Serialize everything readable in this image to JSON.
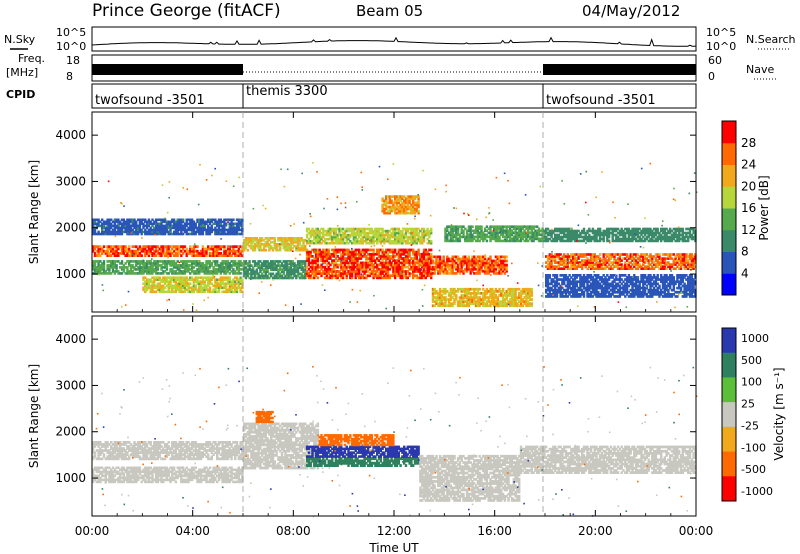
{
  "header": {
    "title": "Prince George (fitACF)",
    "beam": "Beam 05",
    "date": "04/May/2012"
  },
  "noise": {
    "left_label": "N.Sky",
    "right_label": "N.Search",
    "tick_top": "10^5",
    "tick_bottom": "10^0"
  },
  "freq": {
    "label_line1": "Freq.",
    "label_line2": "[MHz]",
    "tick_top": "18",
    "tick_bottom": "8",
    "nave_label": "Nave",
    "nave_tick_top": "60",
    "nave_tick_bottom": "0"
  },
  "cpid": {
    "label": "CPID",
    "segments": [
      {
        "name": "twofsound -3501",
        "start_hour": 0,
        "end_hour": 6
      },
      {
        "name": "themis 3300",
        "start_hour": 6,
        "end_hour": 18
      },
      {
        "name": "twofsound -3501",
        "start_hour": 18,
        "end_hour": 24
      }
    ]
  },
  "xaxis": {
    "label": "Time UT",
    "ticks": [
      "00:00",
      "04:00",
      "08:00",
      "12:00",
      "16:00",
      "20:00",
      "00:00"
    ]
  },
  "chart_data": [
    {
      "type": "heatmap",
      "name": "power-panel",
      "ylabel": "Slant Range [km]",
      "xlabel": "",
      "xlim": [
        0,
        24
      ],
      "ylim": [
        180,
        4500
      ],
      "yticks": [
        "1000",
        "2000",
        "3000",
        "4000"
      ],
      "colorbar_label": "Power [dB]",
      "colorbar_ticks": [
        "4",
        "8",
        "12",
        "16",
        "20",
        "24",
        "28"
      ],
      "colorscale": [
        "#0000ff",
        "#2a55b8",
        "#3a8a6a",
        "#56a94c",
        "#b7d63c",
        "#f2a81c",
        "#ff6a00",
        "#ff0000"
      ],
      "color_range": [
        0,
        32
      ],
      "bands": [
        {
          "t0": 0.0,
          "t1": 6.0,
          "r0": 1380,
          "r1": 1620,
          "value": 27
        },
        {
          "t0": 0.0,
          "t1": 6.0,
          "r0": 1000,
          "r1": 1300,
          "value": 13
        },
        {
          "t0": 0.0,
          "t1": 6.0,
          "r0": 1850,
          "r1": 2200,
          "value": 7
        },
        {
          "t0": 2.0,
          "t1": 6.0,
          "r0": 600,
          "r1": 950,
          "value": 19
        },
        {
          "t0": 6.0,
          "t1": 8.5,
          "r0": 1500,
          "r1": 1800,
          "value": 20
        },
        {
          "t0": 6.0,
          "t1": 8.5,
          "r0": 900,
          "r1": 1300,
          "value": 11
        },
        {
          "t0": 8.5,
          "t1": 13.5,
          "r0": 900,
          "r1": 1550,
          "value": 28
        },
        {
          "t0": 8.5,
          "t1": 13.5,
          "r0": 1650,
          "r1": 2000,
          "value": 18
        },
        {
          "t0": 11.5,
          "t1": 13.0,
          "r0": 2300,
          "r1": 2700,
          "value": 23
        },
        {
          "t0": 13.0,
          "t1": 16.5,
          "r0": 1000,
          "r1": 1400,
          "value": 27
        },
        {
          "t0": 13.5,
          "t1": 17.5,
          "r0": 300,
          "r1": 700,
          "value": 21
        },
        {
          "t0": 14.0,
          "t1": 18.0,
          "r0": 1700,
          "r1": 2050,
          "value": 13
        },
        {
          "t0": 18.0,
          "t1": 24.0,
          "r0": 1100,
          "r1": 1450,
          "value": 26
        },
        {
          "t0": 18.0,
          "t1": 24.0,
          "r0": 1700,
          "r1": 2000,
          "value": 10
        },
        {
          "t0": 18.0,
          "t1": 24.0,
          "r0": 500,
          "r1": 1000,
          "value": 6
        }
      ]
    },
    {
      "type": "heatmap",
      "name": "velocity-panel",
      "ylabel": "Slant Range [km]",
      "xlabel": "Time UT",
      "xlim": [
        0,
        24
      ],
      "ylim": [
        180,
        4500
      ],
      "yticks": [
        "1000",
        "2000",
        "3000",
        "4000"
      ],
      "colorbar_label": "Velocity [m s⁻¹]",
      "colorbar_ticks": [
        "1000",
        "500",
        "100",
        "25",
        "-25",
        "-100",
        "-500",
        "-1000"
      ],
      "colorscale": [
        "#2a38b0",
        "#2e8060",
        "#5cbf3a",
        "#c8c8c0",
        "#f2a81c",
        "#ff6a00",
        "#ff0000"
      ],
      "ground_scatter_color": "#c8c8c0",
      "bands": [
        {
          "t0": 0.0,
          "t1": 6.0,
          "r0": 1400,
          "r1": 1800,
          "value": 0
        },
        {
          "t0": 0.0,
          "t1": 6.0,
          "r0": 900,
          "r1": 1250,
          "value": 0
        },
        {
          "t0": 6.0,
          "t1": 9.0,
          "r0": 1200,
          "r1": 2200,
          "value": 0
        },
        {
          "t0": 8.5,
          "t1": 13.0,
          "r0": 1250,
          "r1": 1450,
          "value": 220
        },
        {
          "t0": 8.5,
          "t1": 13.0,
          "r0": 1450,
          "r1": 1700,
          "value": 750
        },
        {
          "t0": 9.0,
          "t1": 12.0,
          "r0": 1700,
          "r1": 1950,
          "value": -300
        },
        {
          "t0": 13.0,
          "t1": 17.0,
          "r0": 500,
          "r1": 1500,
          "value": 0
        },
        {
          "t0": 17.0,
          "t1": 24.0,
          "r0": 1100,
          "r1": 1700,
          "value": 0
        },
        {
          "t0": 6.5,
          "t1": 7.2,
          "r0": 2200,
          "r1": 2450,
          "value": -400
        }
      ]
    }
  ]
}
